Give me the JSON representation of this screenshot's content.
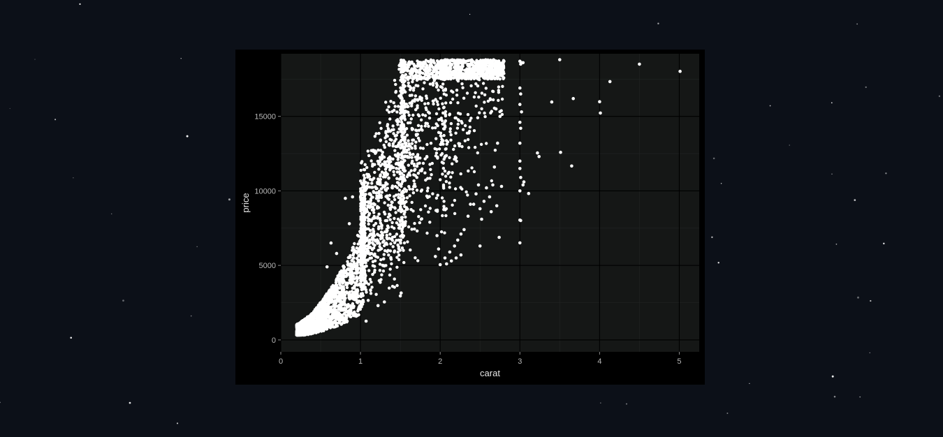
{
  "background": {
    "color": "#0c1018",
    "star_color": "#ffffff"
  },
  "chart_data": {
    "type": "scatter",
    "xlabel": "carat",
    "ylabel": "price",
    "xlim": [
      0,
      5.25
    ],
    "ylim": [
      -800,
      19200
    ],
    "xticks": [
      0,
      1,
      2,
      3,
      4,
      5
    ],
    "yticks": [
      0,
      5000,
      10000,
      15000
    ],
    "grid": true,
    "colors": {
      "panel": "#151716",
      "grid_major": "#000000",
      "points": "#ffffff",
      "tick_label": "#b8b8b8",
      "axis_title": "#e6e6e6"
    },
    "series": [
      {
        "values": [
          [
            3.0,
            18700
          ],
          [
            3.01,
            18500
          ],
          [
            3.02,
            18600
          ],
          [
            3.04,
            18600
          ],
          [
            3.5,
            18800
          ],
          [
            4.5,
            18500
          ],
          [
            5.01,
            18018
          ],
          [
            4.13,
            17329
          ],
          [
            3.67,
            16193
          ],
          [
            3.4,
            15964
          ],
          [
            4.0,
            15984
          ],
          [
            4.01,
            15223
          ],
          [
            3.22,
            12545
          ],
          [
            3.24,
            12300
          ],
          [
            3.51,
            12587
          ],
          [
            3.65,
            11668
          ],
          [
            3.0,
            11500
          ],
          [
            3.01,
            10900
          ],
          [
            3.05,
            10600
          ],
          [
            3.04,
            10400
          ],
          [
            3.0,
            10000
          ],
          [
            3.11,
            9823
          ],
          [
            3.0,
            8040
          ],
          [
            3.01,
            8010
          ],
          [
            3.0,
            6512
          ],
          [
            3.0,
            16900
          ],
          [
            3.01,
            16500
          ],
          [
            3.0,
            15800
          ],
          [
            3.02,
            15300
          ],
          [
            3.0,
            14600
          ],
          [
            3.01,
            14200
          ],
          [
            3.0,
            13200
          ],
          [
            3.0,
            12000
          ],
          [
            2.74,
            6880
          ],
          [
            2.5,
            6300
          ],
          [
            2.8,
            18700
          ],
          [
            2.7,
            15500
          ],
          [
            2.75,
            15000
          ],
          [
            2.72,
            13200
          ],
          [
            2.77,
            10300
          ],
          [
            2.68,
            11600
          ],
          [
            2.66,
            10400
          ],
          [
            2.62,
            9600
          ],
          [
            2.71,
            9000
          ],
          [
            2.64,
            8600
          ],
          [
            2.58,
            10200
          ],
          [
            2.55,
            9300
          ],
          [
            2.52,
            8100
          ],
          [
            2.5,
            8800
          ],
          [
            2.48,
            10400
          ],
          [
            2.45,
            9800
          ],
          [
            2.42,
            9100
          ],
          [
            2.38,
            9100
          ],
          [
            2.35,
            8300
          ],
          [
            2.3,
            7400
          ],
          [
            2.26,
            7100
          ],
          [
            2.22,
            6700
          ],
          [
            2.18,
            6300
          ],
          [
            2.12,
            5900
          ],
          [
            2.06,
            5500
          ],
          [
            2.26,
            5700
          ],
          [
            2.2,
            5500
          ],
          [
            2.14,
            5300
          ],
          [
            2.08,
            5100
          ],
          [
            2.0,
            5050
          ],
          [
            1.98,
            6100
          ],
          [
            1.94,
            5600
          ],
          [
            1.96,
            7000
          ],
          [
            0.63,
            6500
          ],
          [
            0.7,
            5800
          ],
          [
            0.58,
            4900
          ],
          [
            0.81,
            9500
          ],
          [
            0.9,
            9600
          ],
          [
            0.86,
            7800
          ],
          [
            1.07,
            1260
          ],
          [
            1.22,
            2300
          ],
          [
            1.3,
            2550
          ],
          [
            1.5,
            2950
          ],
          [
            1.51,
            3150
          ]
        ]
      }
    ]
  }
}
